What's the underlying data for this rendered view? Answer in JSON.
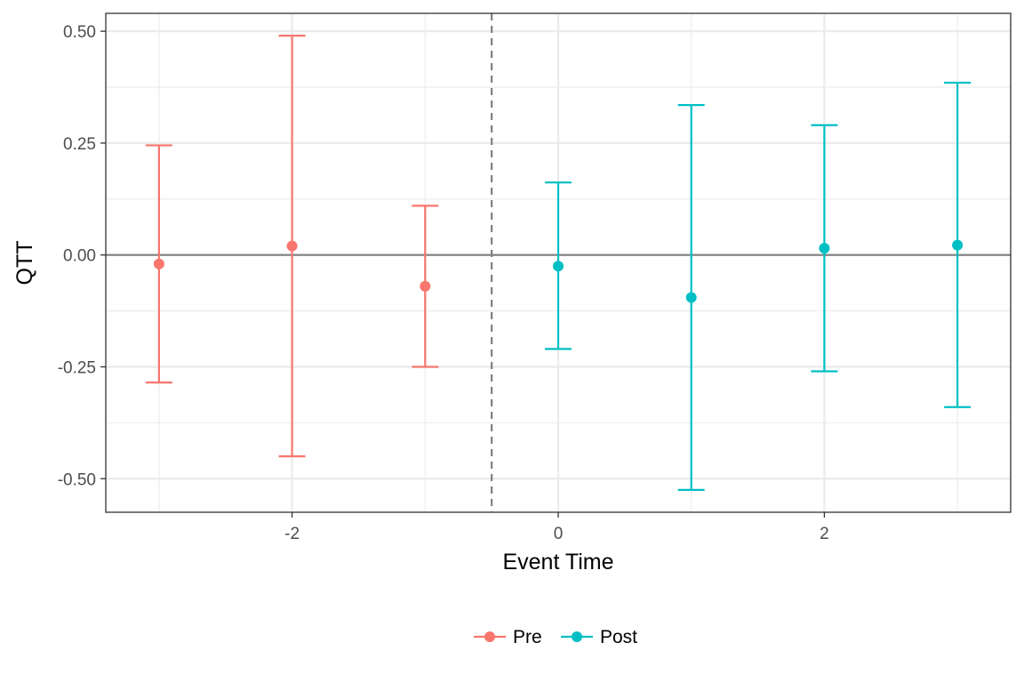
{
  "chart_data": {
    "type": "scatter",
    "subtype": "point-with-error-bars",
    "xlabel": "Event Time",
    "ylabel": "QTT",
    "xlim": [
      -3.4,
      3.4
    ],
    "ylim": [
      -0.575,
      0.54
    ],
    "x_ticks": [
      -2,
      0,
      2
    ],
    "x_tick_labels": [
      "-2",
      "0",
      "2"
    ],
    "x_minor_grid": [
      -3,
      -1,
      1,
      3
    ],
    "y_ticks": [
      -0.5,
      -0.25,
      0,
      0.25,
      0.5
    ],
    "y_tick_labels": [
      "-0.50",
      "-0.25",
      "0.00",
      "0.25",
      "0.50"
    ],
    "y_minor_grid": [
      -0.375,
      -0.125,
      0.125,
      0.375
    ],
    "grid": true,
    "reference_hline": 0,
    "reference_vline": -0.5,
    "legend_position": "bottom",
    "series": [
      {
        "name": "Pre",
        "color": "#F8766D",
        "points": [
          {
            "x": -3,
            "y": -0.02,
            "lower": -0.285,
            "upper": 0.245
          },
          {
            "x": -2,
            "y": 0.02,
            "lower": -0.45,
            "upper": 0.49
          },
          {
            "x": -1,
            "y": -0.07,
            "lower": -0.25,
            "upper": 0.11
          }
        ]
      },
      {
        "name": "Post",
        "color": "#00BFC4",
        "points": [
          {
            "x": 0,
            "y": -0.025,
            "lower": -0.21,
            "upper": 0.162
          },
          {
            "x": 1,
            "y": -0.095,
            "lower": -0.525,
            "upper": 0.335
          },
          {
            "x": 2,
            "y": 0.015,
            "lower": -0.26,
            "upper": 0.29
          },
          {
            "x": 3,
            "y": 0.022,
            "lower": -0.34,
            "upper": 0.385
          }
        ]
      }
    ]
  }
}
